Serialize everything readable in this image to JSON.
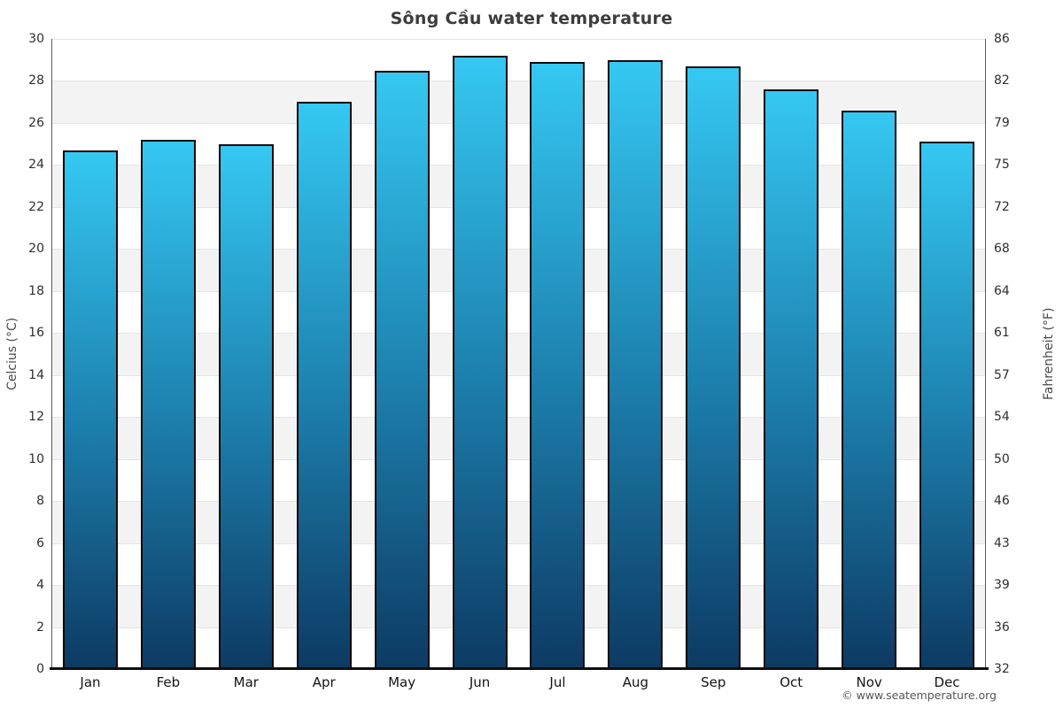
{
  "chart_data": {
    "type": "bar",
    "title": "Sông Cầu water temperature",
    "categories": [
      "Jan",
      "Feb",
      "Mar",
      "Apr",
      "May",
      "Jun",
      "Jul",
      "Aug",
      "Sep",
      "Oct",
      "Nov",
      "Dec"
    ],
    "values": [
      24.7,
      25.2,
      25.0,
      27.0,
      28.5,
      29.2,
      28.9,
      29.0,
      28.7,
      27.6,
      26.6,
      25.1
    ],
    "values_unit": "°C",
    "ylabel_left": "Celcius (°C)",
    "ylabel_right": "Fahrenheit (°F)",
    "ylim": [
      0,
      30
    ],
    "yticks_celsius": [
      0,
      2,
      4,
      6,
      8,
      10,
      12,
      14,
      16,
      18,
      20,
      22,
      24,
      26,
      28,
      30
    ],
    "yticks_fahrenheit": [
      32,
      36,
      39,
      43,
      46,
      50,
      54,
      57,
      61,
      64,
      68,
      72,
      75,
      79,
      82,
      86
    ],
    "grid": "alternating horizontal bands every 2°C, white and light gray",
    "legend": "none",
    "colors": {
      "bar_gradient_top": "#35c8f2",
      "bar_gradient_mid": "#1d80ae",
      "bar_gradient_bottom": "#0d3a63",
      "bar_border": "#0a0a0a",
      "band_gray": "#f3f3f3",
      "title_text": "#3c3c3c"
    }
  },
  "footer": {
    "credit": "© www.seatemperature.org"
  }
}
